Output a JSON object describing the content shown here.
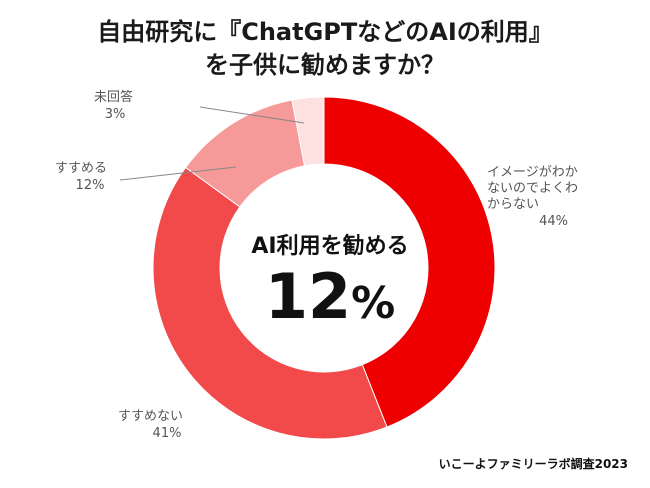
{
  "title": {
    "line1": "自由研究に『ChatGPTなどのAIの利用』",
    "line2": "を子供に勧めますか？"
  },
  "center": {
    "label": "AI利用を勧める",
    "value": "12",
    "unit": "%"
  },
  "credit": "いこーよファミリーラボ調査2023",
  "chart_data": {
    "type": "pie",
    "variant": "donut",
    "categories": [
      "イメージがわかないのでよくわからない",
      "すすめない",
      "すすめる",
      "未回答"
    ],
    "values": [
      44,
      41,
      12,
      3
    ],
    "unit": "%",
    "colors": [
      "#ee0000",
      "#f24a4a",
      "#f59999",
      "#fde0e0"
    ],
    "labels": [
      {
        "lines": [
          "イメージがわか",
          "ないのでよくわ",
          "からない"
        ],
        "value": "44%"
      },
      {
        "lines": [
          "すすめない"
        ],
        "value": "41%"
      },
      {
        "lines": [
          "すすめる"
        ],
        "value": "12%"
      },
      {
        "lines": [
          "未回答"
        ],
        "value": "3%"
      }
    ]
  }
}
